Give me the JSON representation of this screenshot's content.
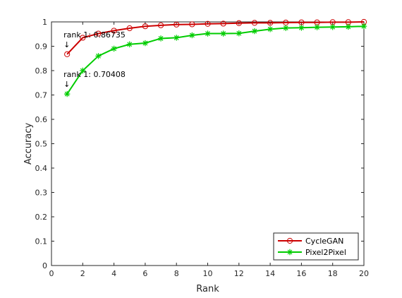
{
  "chart_data": {
    "type": "line",
    "title": "",
    "xlabel": "Rank",
    "ylabel": "Accuracy",
    "xlim": [
      0,
      20
    ],
    "ylim": [
      0,
      1
    ],
    "xticks": [
      0,
      2,
      4,
      6,
      8,
      10,
      12,
      14,
      16,
      18,
      20
    ],
    "yticks": [
      0,
      0.1,
      0.2,
      0.3,
      0.4,
      0.5,
      0.6,
      0.7,
      0.8,
      0.9,
      1
    ],
    "grid": false,
    "legend": "bottom-right",
    "x": [
      1,
      2,
      3,
      4,
      5,
      6,
      7,
      8,
      9,
      10,
      11,
      12,
      13,
      14,
      15,
      16,
      17,
      18,
      19,
      20
    ],
    "series": [
      {
        "name": "CycleGAN",
        "color": "#cc0000",
        "marker": "circle",
        "values": [
          0.86735,
          0.935,
          0.952,
          0.964,
          0.974,
          0.982,
          0.986,
          0.989,
          0.99,
          0.992,
          0.993,
          0.995,
          0.996,
          0.996,
          0.997,
          0.998,
          0.998,
          0.999,
          0.999,
          1.0
        ]
      },
      {
        "name": "Pixel2Pixel",
        "color": "#00cc00",
        "marker": "star",
        "values": [
          0.70408,
          0.8,
          0.86,
          0.89,
          0.908,
          0.913,
          0.932,
          0.935,
          0.945,
          0.952,
          0.952,
          0.953,
          0.962,
          0.97,
          0.975,
          0.976,
          0.978,
          0.979,
          0.98,
          0.982
        ]
      }
    ],
    "annotations": [
      {
        "text": "rank 1: 0.86735",
        "x": 1,
        "y": 0.86735,
        "arrow": "↓"
      },
      {
        "text": "rank 1: 0.70408",
        "x": 1,
        "y": 0.70408,
        "arrow": "↓"
      }
    ]
  }
}
